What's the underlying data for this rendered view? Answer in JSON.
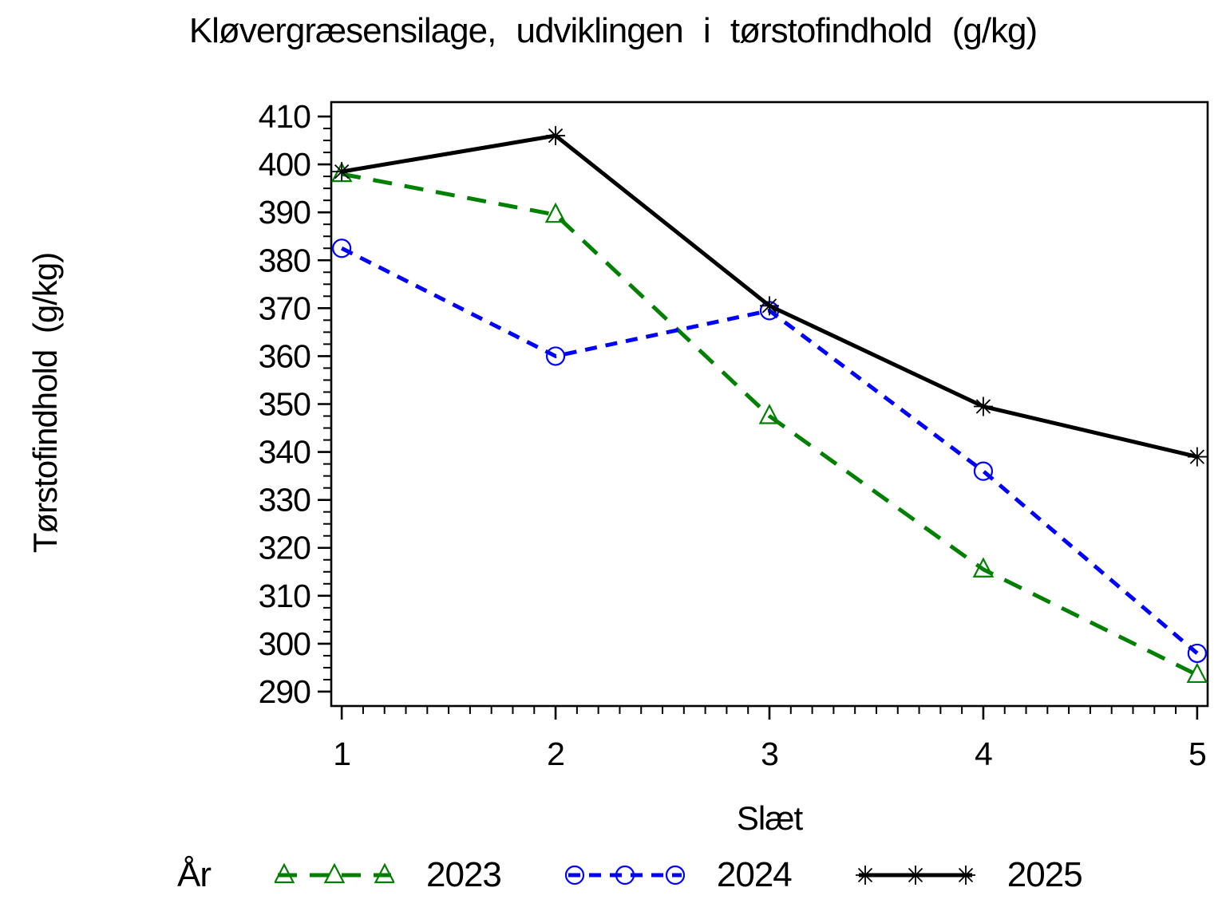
{
  "page": {
    "background": "#ffffff"
  },
  "chart_data": {
    "type": "line",
    "title": "Kløvergræsensilage, udviklingen i tørstofindhold (g/kg)",
    "xlabel": "Slæt",
    "ylabel": "Tørstofindhold (g/kg)",
    "x": [
      1,
      2,
      3,
      4,
      5
    ],
    "x_ticks": [
      1,
      2,
      3,
      4,
      5
    ],
    "y_ticks": [
      290,
      300,
      310,
      320,
      330,
      340,
      350,
      360,
      370,
      380,
      390,
      400,
      410
    ],
    "xlim": [
      0.951,
      5.049
    ],
    "ylim": [
      287,
      413
    ],
    "x_minor_step": 0.1,
    "y_minor_step": 2.5,
    "grid": false,
    "frame": true,
    "axis_color": "#000000",
    "legend": {
      "title": "År",
      "position": "bottom"
    },
    "series": [
      {
        "name": "2023",
        "color": "#008000",
        "line": "dashed",
        "dash": "24 16",
        "marker": "triangle",
        "values": [
          398,
          389.5,
          347.5,
          315.5,
          293.5
        ]
      },
      {
        "name": "2024",
        "color": "#0000ff",
        "line": "dashed",
        "dash": "15 11",
        "marker": "circle",
        "values": [
          382.5,
          360,
          369.5,
          336,
          298
        ]
      },
      {
        "name": "2025",
        "color": "#000000",
        "line": "solid",
        "dash": "",
        "marker": "asterisk",
        "values": [
          398.5,
          406,
          370.5,
          349.5,
          339
        ]
      }
    ]
  }
}
